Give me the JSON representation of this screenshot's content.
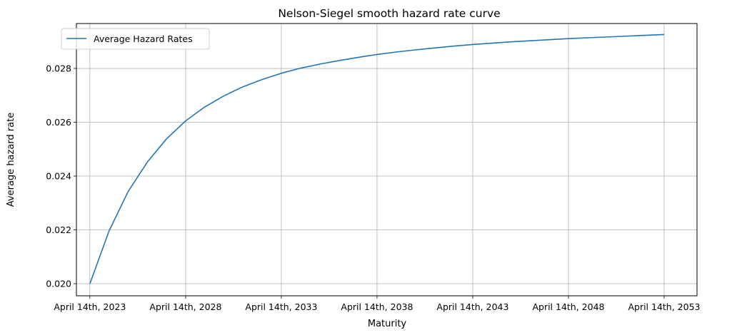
{
  "chart_data": {
    "type": "line",
    "title": "Nelson-Siegel smooth hazard rate curve",
    "xlabel": "Maturity",
    "ylabel": "Average hazard rate",
    "x_tick_labels": [
      "April 14th, 2023",
      "April 14th, 2028",
      "April 14th, 2033",
      "April 14th, 2038",
      "April 14th, 2043",
      "April 14th, 2048",
      "April 14th, 2053"
    ],
    "y_tick_labels": [
      "0.020",
      "0.022",
      "0.024",
      "0.026",
      "0.028"
    ],
    "y_ticks": [
      0.02,
      0.022,
      0.024,
      0.026,
      0.028
    ],
    "xlim": [
      "2022-07-31",
      "2055-01-01"
    ],
    "ylim": [
      0.01955,
      0.02967
    ],
    "grid": true,
    "legend_position": "top-left",
    "series": [
      {
        "name": "Average Hazard Rates",
        "color": "#1f77b4",
        "x": [
          "2023-04-14",
          "2024-04-14",
          "2025-04-14",
          "2026-04-14",
          "2027-04-14",
          "2028-04-14",
          "2029-04-14",
          "2030-04-14",
          "2031-04-14",
          "2032-04-14",
          "2033-04-14",
          "2034-04-14",
          "2035-04-14",
          "2036-04-14",
          "2037-04-14",
          "2038-04-14",
          "2039-04-14",
          "2040-04-14",
          "2041-04-14",
          "2042-04-14",
          "2043-04-14",
          "2044-04-14",
          "2045-04-14",
          "2046-04-14",
          "2047-04-14",
          "2048-04-14",
          "2049-04-14",
          "2050-04-14",
          "2051-04-14",
          "2052-04-14",
          "2053-04-14"
        ],
        "y": [
          0.02,
          0.02196,
          0.02343,
          0.02452,
          0.02538,
          0.02605,
          0.02657,
          0.02698,
          0.02732,
          0.02759,
          0.02782,
          0.02801,
          0.02816,
          0.02829,
          0.02841,
          0.02852,
          0.02861,
          0.02869,
          0.02876,
          0.02883,
          0.02889,
          0.02894,
          0.02899,
          0.02903,
          0.02907,
          0.02911,
          0.02914,
          0.02917,
          0.0292,
          0.02923,
          0.02926
        ]
      }
    ]
  }
}
